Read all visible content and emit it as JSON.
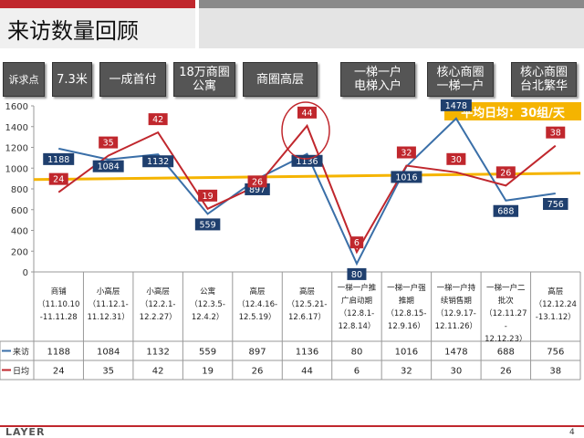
{
  "header": {
    "title": "来访数量回顾"
  },
  "tags": [
    {
      "label": "诉求点"
    },
    {
      "label": "7.3米"
    },
    {
      "label": "一成首付"
    },
    {
      "label": "18万商圈\n公寓"
    },
    {
      "label": "商圈高层"
    },
    {
      "label": "一梯一户\n电梯入户"
    },
    {
      "label": "核心商圈\n一梯一户"
    },
    {
      "label": "核心商圈\n台北繁华"
    }
  ],
  "avg_label": "平均日均：30组/天",
  "footer": {
    "logo": "LAYER",
    "page": "4"
  },
  "colors": {
    "visits": "#3a6fa8",
    "daily": "#c0272d",
    "average": "#f5b400",
    "header_red": "#c0272d"
  },
  "chart_data": {
    "type": "line",
    "ylim": [
      0,
      1600
    ],
    "yticks": [
      0,
      200,
      400,
      600,
      800,
      1000,
      1200,
      1400,
      1600
    ],
    "average_daily": 30,
    "categories": [
      [
        "商铺",
        "（11.10.10",
        "-11.11.28"
      ],
      [
        "小高层",
        "（11.12.1-",
        "11.12.31）"
      ],
      [
        "小高层",
        "（12.2.1-",
        "12.2.27）"
      ],
      [
        "公寓",
        "（12.3.5-",
        "12.4.2）"
      ],
      [
        "高层",
        "（12.4.16-",
        "12.5.19）"
      ],
      [
        "高层",
        "（12.5.21-",
        "12.6.17）"
      ],
      [
        "一梯一户推",
        "广启动期",
        "（12.8.1-",
        "12.8.14）"
      ],
      [
        "一梯一户强",
        "推期",
        "（12.8.15-",
        "12.9.16）"
      ],
      [
        "一梯一户持",
        "续销售期",
        "（12.9.17-",
        "12.11.26）"
      ],
      [
        "一梯一户二",
        "批次",
        "（12.11.27",
        "-",
        "12.12.23）"
      ],
      [
        "高层",
        "（12.12.24",
        "-13.1.12）"
      ]
    ],
    "series": [
      {
        "name": "来访",
        "axis": "left",
        "values": [
          1188,
          1084,
          1132,
          559,
          897,
          1136,
          80,
          1016,
          1478,
          688,
          756
        ]
      },
      {
        "name": "日均",
        "axis": "right",
        "values": [
          24,
          35,
          42,
          19,
          26,
          44,
          6,
          32,
          30,
          26,
          38
        ]
      }
    ]
  }
}
